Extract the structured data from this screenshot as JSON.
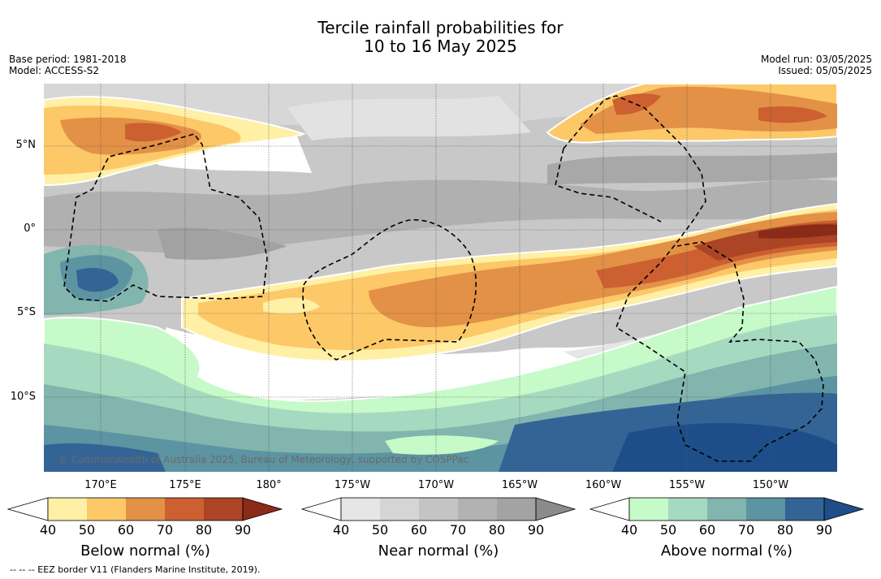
{
  "title": {
    "line1": "Tercile rainfall probabilities for",
    "line2": "10 to 16 May 2025"
  },
  "meta_left": {
    "base_period": "Base period: 1981-2018",
    "model": "Model: ACCESS-S2"
  },
  "meta_right": {
    "model_run": "Model run: 03/05/2025",
    "issued": "Issued: 05/05/2025"
  },
  "map": {
    "lat_labels": [
      "5°N",
      "0°",
      "5°S",
      "10°S"
    ],
    "lon_labels": [
      "170°E",
      "175°E",
      "180°",
      "175°W",
      "170°W",
      "165°W",
      "160°W",
      "155°W",
      "150°W"
    ],
    "copyright": "© Commonwealth of Australia 2025, Bureau of Meteorology, supported by COSPPac",
    "eez_border": "dashed black"
  },
  "colorbars": [
    {
      "title": "Below normal (%)",
      "ticks": [
        "40",
        "50",
        "60",
        "70",
        "80",
        "90"
      ],
      "colors": [
        "#fff0a6",
        "#fdc868",
        "#e39146",
        "#cc6030",
        "#ab4525",
        "#8c2a18"
      ]
    },
    {
      "title": "Near normal (%)",
      "ticks": [
        "40",
        "50",
        "60",
        "70",
        "80",
        "90"
      ],
      "colors": [
        "#e6e6e6",
        "#d5d5d5",
        "#c4c4c4",
        "#b2b2b2",
        "#a3a3a3",
        "#8b8b8b"
      ]
    },
    {
      "title": "Above normal (%)",
      "ticks": [
        "40",
        "50",
        "60",
        "70",
        "80",
        "90"
      ],
      "colors": [
        "#c7fac9",
        "#a6dac0",
        "#82b5ae",
        "#5c94a2",
        "#346496",
        "#1d4e89"
      ]
    }
  ],
  "footnote": "--  --  -- EEZ border V11 (Flanders Marine Institute, 2019)."
}
